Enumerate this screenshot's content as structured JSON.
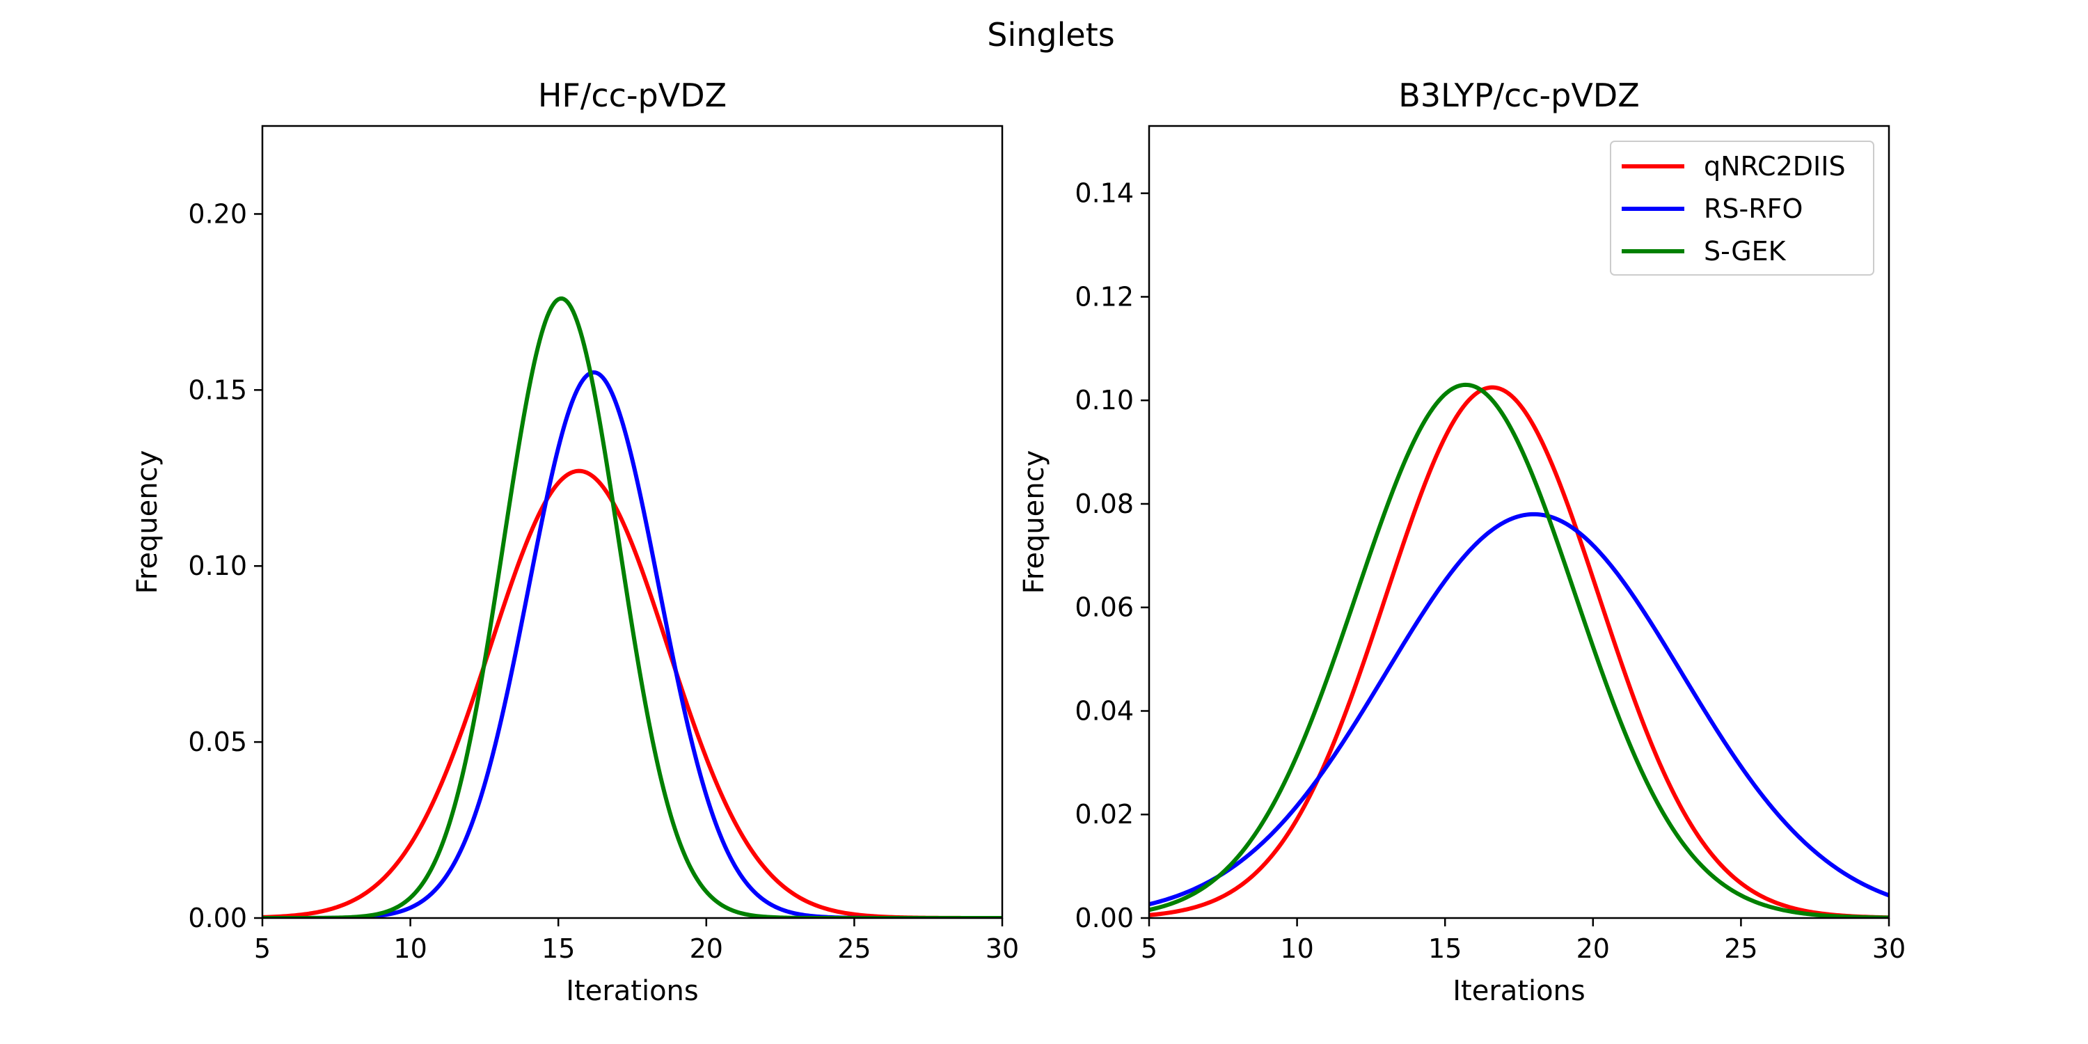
{
  "figure": {
    "suptitle": "Singlets"
  },
  "chart_data": [
    {
      "type": "line",
      "title": "HF/cc-pVDZ",
      "xlabel": "Iterations",
      "ylabel": "Frequency",
      "xlim": [
        5,
        30
      ],
      "ylim": [
        0,
        0.225
      ],
      "xticks": [
        5,
        10,
        15,
        20,
        25,
        30
      ],
      "xtick_labels": [
        "5",
        "10",
        "15",
        "20",
        "25",
        "30"
      ],
      "yticks": [
        0,
        0.05,
        0.1,
        0.15,
        0.2
      ],
      "ytick_labels": [
        "0.00",
        "0.05",
        "0.10",
        "0.15",
        "0.20"
      ],
      "grid": false,
      "legend": null,
      "series": [
        {
          "name": "qNRC2DIIS",
          "color": "#ff0000",
          "distribution": "normal",
          "mean": 15.7,
          "peak": 0.127
        },
        {
          "name": "RS-RFO",
          "color": "#0000ff",
          "distribution": "normal",
          "mean": 16.2,
          "peak": 0.155
        },
        {
          "name": "S-GEK",
          "color": "#008000",
          "distribution": "normal",
          "mean": 15.1,
          "peak": 0.176
        }
      ]
    },
    {
      "type": "line",
      "title": "B3LYP/cc-pVDZ",
      "xlabel": "Iterations",
      "ylabel": "Frequency",
      "xlim": [
        5,
        30
      ],
      "ylim": [
        0,
        0.153
      ],
      "xticks": [
        5,
        10,
        15,
        20,
        25,
        30
      ],
      "xtick_labels": [
        "5",
        "10",
        "15",
        "20",
        "25",
        "30"
      ],
      "yticks": [
        0,
        0.02,
        0.04,
        0.06,
        0.08,
        0.1,
        0.12,
        0.14
      ],
      "ytick_labels": [
        "0.00",
        "0.02",
        "0.04",
        "0.06",
        "0.08",
        "0.10",
        "0.12",
        "0.14"
      ],
      "grid": false,
      "legend": "top-right",
      "series": [
        {
          "name": "qNRC2DIIS",
          "color": "#ff0000",
          "distribution": "normal",
          "mean": 16.6,
          "peak": 0.1025
        },
        {
          "name": "RS-RFO",
          "color": "#0000ff",
          "distribution": "normal",
          "mean": 18.0,
          "peak": 0.078
        },
        {
          "name": "S-GEK",
          "color": "#008000",
          "distribution": "normal",
          "mean": 15.7,
          "peak": 0.103
        }
      ]
    }
  ]
}
